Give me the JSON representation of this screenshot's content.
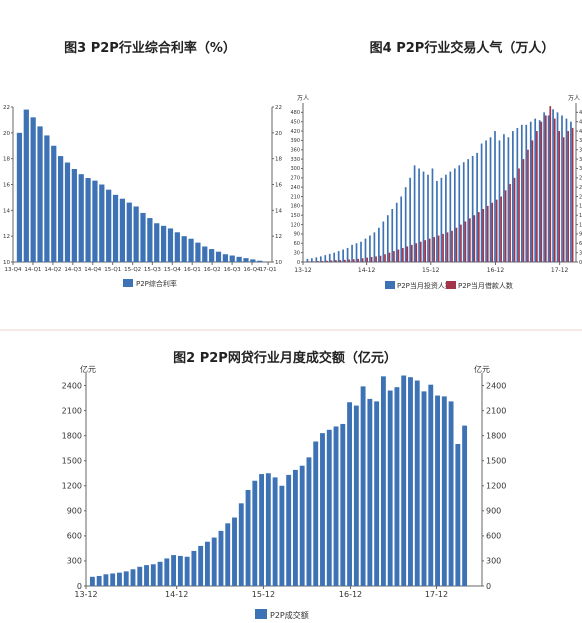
{
  "chart_data": [
    {
      "id": "fig3",
      "type": "bar",
      "title": "图3 P2P行业综合利率（%）",
      "legend": [
        "P2P综合利率"
      ],
      "colors": {
        "bar": "#3d72b4"
      },
      "ylim": [
        10,
        22
      ],
      "yticks": [
        10,
        12,
        14,
        16,
        18,
        20,
        22
      ],
      "xtick_labels": [
        "13-Q4",
        "14-Q1",
        "14-Q2",
        "14-Q3",
        "14-Q4",
        "15-Q1",
        "15-Q2",
        "15-Q3",
        "15-Q4",
        "16-Q1",
        "16-Q2",
        "16-Q3",
        "16-Q4",
        "17-Q1"
      ],
      "series": [
        {
          "name": "P2P综合利率",
          "values": [
            20.0,
            21.8,
            21.2,
            20.5,
            19.8,
            19.0,
            18.2,
            17.7,
            17.2,
            16.8,
            16.5,
            16.3,
            16.0,
            15.6,
            15.2,
            14.9,
            14.6,
            14.3,
            13.8,
            13.4,
            13.0,
            12.8,
            12.6,
            12.3,
            12.0,
            11.8,
            11.5,
            11.2,
            11.0,
            10.8,
            10.6,
            10.5,
            10.4,
            10.3,
            10.2,
            10.1,
            10.0
          ]
        }
      ]
    },
    {
      "id": "fig4",
      "type": "bar",
      "title": "图4 P2P行业交易人气（万人）",
      "ylabel_left": "万人",
      "ylabel_right": "万人",
      "ylim": [
        0,
        510
      ],
      "yticks": [
        0,
        30,
        60,
        90,
        120,
        150,
        180,
        210,
        240,
        270,
        300,
        330,
        360,
        390,
        420,
        450,
        480
      ],
      "xtick_labels": [
        "13-12",
        "14-12",
        "15-12",
        "16-12",
        "17-12"
      ],
      "legend": [
        "P2P当月投资人数",
        "P2P当月借款人数"
      ],
      "colors": {
        "investors": "#3d72b4",
        "borrowers": "#a3344a"
      },
      "series": [
        {
          "name": "P2P当月投资人数",
          "values": [
            10,
            12,
            15,
            18,
            22,
            26,
            30,
            35,
            40,
            45,
            55,
            60,
            65,
            75,
            85,
            95,
            110,
            130,
            150,
            170,
            190,
            210,
            240,
            270,
            310,
            300,
            290,
            280,
            300,
            260,
            270,
            280,
            290,
            300,
            310,
            320,
            330,
            340,
            350,
            380,
            390,
            400,
            420,
            390,
            410,
            400,
            420,
            430,
            440,
            440,
            450,
            460,
            455,
            480,
            470,
            490,
            480,
            470,
            460,
            450
          ]
        },
        {
          "name": "P2P当月借款人数",
          "values": [
            2,
            2,
            3,
            3,
            4,
            5,
            6,
            6,
            7,
            8,
            9,
            10,
            12,
            14,
            16,
            18,
            20,
            25,
            30,
            35,
            40,
            45,
            50,
            55,
            60,
            65,
            70,
            75,
            80,
            85,
            90,
            95,
            100,
            110,
            120,
            130,
            140,
            150,
            160,
            170,
            180,
            190,
            200,
            210,
            230,
            250,
            270,
            300,
            330,
            360,
            390,
            420,
            450,
            470,
            500,
            460,
            420,
            400,
            420,
            430
          ]
        }
      ]
    },
    {
      "id": "fig2",
      "type": "bar",
      "title": "图2 P2P网贷行业月度成交额（亿元）",
      "ylabel_left": "亿元",
      "ylabel_right": "亿元",
      "legend": [
        "P2P成交额"
      ],
      "colors": {
        "bar": "#3d72b4"
      },
      "ylim": [
        0,
        2550
      ],
      "yticks": [
        0,
        300,
        600,
        900,
        1200,
        1500,
        1800,
        2100,
        2400
      ],
      "xtick_labels": [
        "13-12",
        "14-12",
        "15-12",
        "16-12",
        "17-12"
      ],
      "series": [
        {
          "name": "P2P成交额",
          "values": [
            110,
            120,
            140,
            150,
            160,
            175,
            200,
            230,
            250,
            260,
            290,
            330,
            370,
            360,
            350,
            420,
            480,
            530,
            580,
            660,
            750,
            820,
            990,
            1150,
            1260,
            1340,
            1350,
            1300,
            1200,
            1330,
            1390,
            1440,
            1540,
            1730,
            1830,
            1870,
            1910,
            1940,
            2200,
            2160,
            2390,
            2240,
            2210,
            2510,
            2340,
            2380,
            2520,
            2500,
            2460,
            2330,
            2410,
            2280,
            2270,
            2210,
            1700,
            1920
          ]
        }
      ]
    }
  ]
}
